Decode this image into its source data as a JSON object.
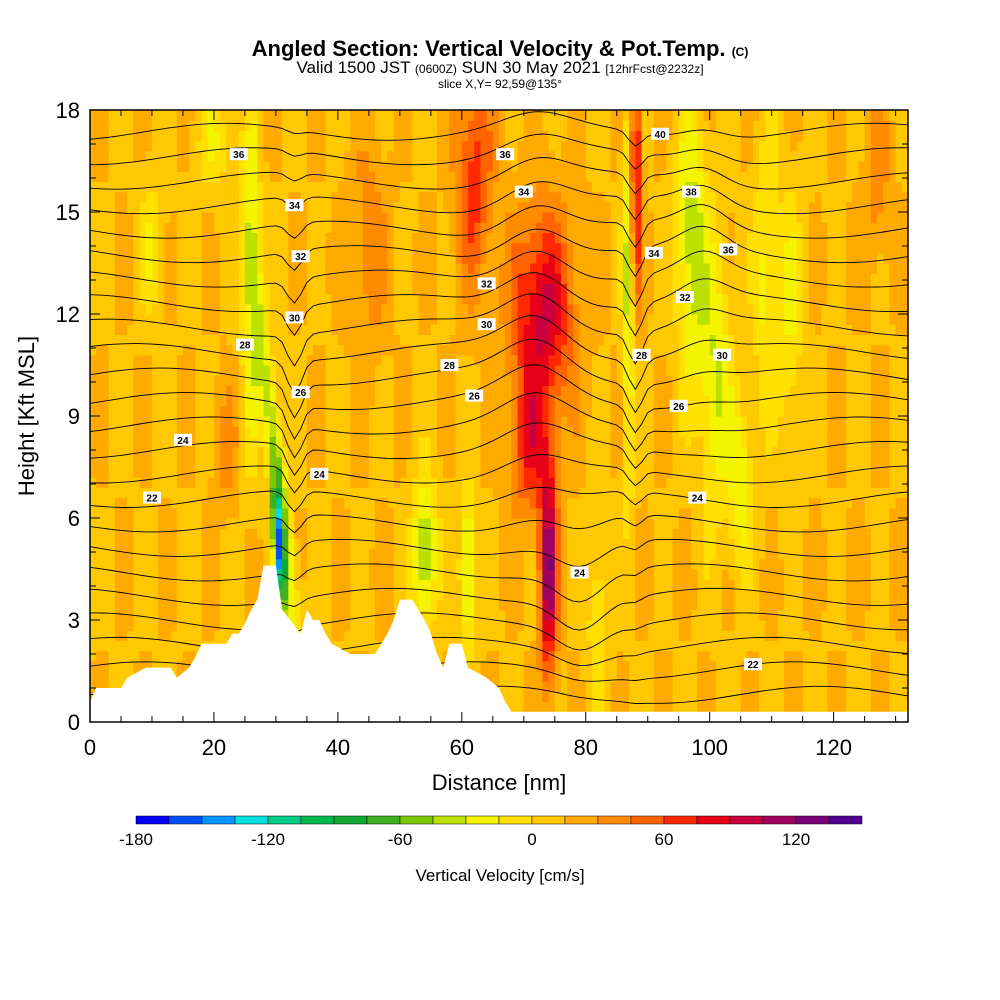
{
  "title": "Angled Section: Vertical Velocity & Pot.Temp.",
  "title_units": "(C)",
  "subtitle": {
    "prefix": "Valid 1500 JST",
    "utc": "(0600Z)",
    "date": "SUN 30 May 2021",
    "forecast": "[12hrFcst@2232z]"
  },
  "slice": "slice X,Y= 92,59@135°",
  "chart_data": {
    "type": "heatmap",
    "xlabel": "Distance [nm]",
    "ylabel": "Height [Kft MSL]",
    "xlim": [
      0,
      132
    ],
    "ylim": [
      0,
      18
    ],
    "xticks": [
      0,
      20,
      40,
      60,
      80,
      100,
      120
    ],
    "yticks": [
      0,
      3,
      6,
      9,
      12,
      15,
      18
    ],
    "colorbar": {
      "label": "Vertical Velocity [cm/s]",
      "ticks": [
        -180,
        -120,
        -60,
        0,
        60,
        120
      ],
      "levels": [
        -180,
        -165,
        -150,
        -135,
        -120,
        -105,
        -90,
        -75,
        -60,
        -45,
        -30,
        -15,
        0,
        15,
        30,
        45,
        60,
        75,
        90,
        105,
        120,
        135,
        150
      ],
      "colors": [
        "#0000ff",
        "#0050ff",
        "#0096ff",
        "#00e0e0",
        "#00cc88",
        "#00b850",
        "#10a830",
        "#40b020",
        "#7cc800",
        "#bce000",
        "#f4f400",
        "#ffe000",
        "#ffc800",
        "#ffaa00",
        "#ff8c00",
        "#ff6400",
        "#ff2800",
        "#e80018",
        "#c80040",
        "#a00060",
        "#780078",
        "#500090"
      ]
    },
    "terrain_kft": [
      [
        0,
        0.6
      ],
      [
        1,
        1.0
      ],
      [
        5,
        1.0
      ],
      [
        6,
        1.3
      ],
      [
        9,
        1.6
      ],
      [
        13,
        1.6
      ],
      [
        14,
        1.3
      ],
      [
        16,
        1.6
      ],
      [
        17,
        1.9
      ],
      [
        18,
        2.3
      ],
      [
        22,
        2.3
      ],
      [
        23,
        2.6
      ],
      [
        24,
        2.6
      ],
      [
        25,
        2.9
      ],
      [
        26,
        3.3
      ],
      [
        27,
        3.6
      ],
      [
        28,
        4.6
      ],
      [
        30,
        4.6
      ],
      [
        31,
        3.3
      ],
      [
        34,
        2.6
      ],
      [
        35,
        3.3
      ],
      [
        36,
        3.0
      ],
      [
        37,
        3.0
      ],
      [
        38,
        2.6
      ],
      [
        39,
        2.3
      ],
      [
        42,
        2.0
      ],
      [
        46,
        2.0
      ],
      [
        47,
        2.3
      ],
      [
        48,
        2.6
      ],
      [
        49,
        3.0
      ],
      [
        50,
        3.6
      ],
      [
        52,
        3.6
      ],
      [
        54,
        3.0
      ],
      [
        55,
        2.6
      ],
      [
        56,
        2.0
      ],
      [
        57,
        1.6
      ],
      [
        58,
        2.3
      ],
      [
        60,
        2.3
      ],
      [
        61,
        1.6
      ],
      [
        64,
        1.3
      ],
      [
        66,
        1.0
      ],
      [
        67,
        0.6
      ],
      [
        68,
        0.3
      ],
      [
        132,
        0.3
      ]
    ],
    "theta_labels_C": [
      {
        "value": "36",
        "x": 24,
        "y": 16.7
      },
      {
        "value": "36",
        "x": 67,
        "y": 16.7
      },
      {
        "value": "40",
        "x": 92,
        "y": 17.3
      },
      {
        "value": "34",
        "x": 33,
        "y": 15.2
      },
      {
        "value": "34",
        "x": 70,
        "y": 15.6
      },
      {
        "value": "38",
        "x": 97,
        "y": 15.6
      },
      {
        "value": "32",
        "x": 34,
        "y": 13.7
      },
      {
        "value": "34",
        "x": 91,
        "y": 13.8
      },
      {
        "value": "36",
        "x": 103,
        "y": 13.9
      },
      {
        "value": "32",
        "x": 64,
        "y": 12.9
      },
      {
        "value": "32",
        "x": 96,
        "y": 12.5
      },
      {
        "value": "30",
        "x": 33,
        "y": 11.9
      },
      {
        "value": "30",
        "x": 64,
        "y": 11.7
      },
      {
        "value": "28",
        "x": 25,
        "y": 11.1
      },
      {
        "value": "28",
        "x": 58,
        "y": 10.5
      },
      {
        "value": "28",
        "x": 89,
        "y": 10.8
      },
      {
        "value": "30",
        "x": 102,
        "y": 10.8
      },
      {
        "value": "26",
        "x": 34,
        "y": 9.7
      },
      {
        "value": "26",
        "x": 62,
        "y": 9.6
      },
      {
        "value": "26",
        "x": 95,
        "y": 9.3
      },
      {
        "value": "24",
        "x": 15,
        "y": 8.3
      },
      {
        "value": "24",
        "x": 37,
        "y": 7.3
      },
      {
        "value": "24",
        "x": 98,
        "y": 6.6
      },
      {
        "value": "22",
        "x": 10,
        "y": 6.6
      },
      {
        "value": "24",
        "x": 79,
        "y": 4.4
      },
      {
        "value": "22",
        "x": 107,
        "y": 1.7
      }
    ]
  }
}
